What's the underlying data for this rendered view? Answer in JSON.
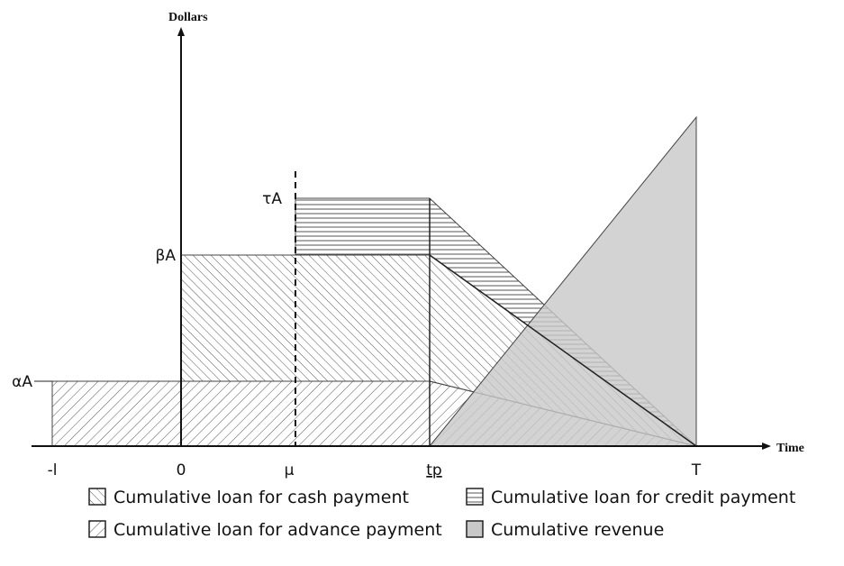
{
  "axes": {
    "y_label": "Dollars",
    "x_label": "Time"
  },
  "x_ticks": [
    "-l",
    "0",
    "μ",
    "tp",
    "T"
  ],
  "y_ticks": [
    "αA",
    "βA",
    "τA"
  ],
  "legend": [
    "Cumulative loan for cash payment",
    "Cumulative loan for credit payment",
    "Cumulative loan for advance payment",
    "Cumulative revenue"
  ]
}
